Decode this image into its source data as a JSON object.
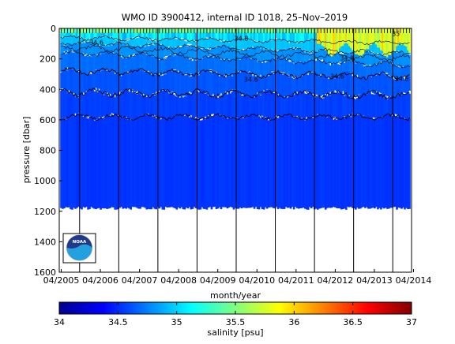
{
  "chart_data": {
    "type": "heatmap",
    "title": "WMO ID 3900412, internal ID 1018, 25–Nov–2019",
    "xlabel": "month/year",
    "ylabel": "pressure [dbar]",
    "x_ticks": [
      "04/2005",
      "04/2006",
      "04/2007",
      "04/2008",
      "04/2009",
      "04/2010",
      "04/2011",
      "04/2012",
      "04/2013",
      "04/2014"
    ],
    "y_ticks": [
      "0",
      "200",
      "400",
      "600",
      "800",
      "1000",
      "1200",
      "1400",
      "1600"
    ],
    "ylim": [
      0,
      1600
    ],
    "y_reversed": true,
    "colorbar": {
      "label": "salinity [psu]",
      "ticks": [
        "34",
        "34.5",
        "35",
        "35.5",
        "36",
        "36.5",
        "37"
      ],
      "range": [
        34,
        37
      ],
      "colormap": "jet"
    },
    "contour_labels": [
      {
        "text": "34.6",
        "date": 2006.15,
        "pressure": 105
      },
      {
        "text": "34.8",
        "date": 2009.85,
        "pressure": 80
      },
      {
        "text": "34.6",
        "date": 2010.1,
        "pressure": 350
      },
      {
        "text": "34.6",
        "date": 2012.3,
        "pressure": 330
      },
      {
        "text": "34.8",
        "date": 2012.55,
        "pressure": 210
      },
      {
        "text": "34.6",
        "date": 2013.95,
        "pressure": 345
      },
      {
        "text": "35",
        "date": 2013.8,
        "pressure": 50
      }
    ],
    "profile_date_range": [
      "04/2005",
      "03/2014"
    ],
    "max_profile_depth_dbar": 1180,
    "vertical_markers": [
      2005.72,
      2006.72,
      2007.72,
      2008.72,
      2009.72,
      2010.72,
      2011.72,
      2012.72,
      2013.72
    ],
    "grid": false
  },
  "logo": {
    "name": "noaa-logo",
    "text": "NOAA"
  }
}
